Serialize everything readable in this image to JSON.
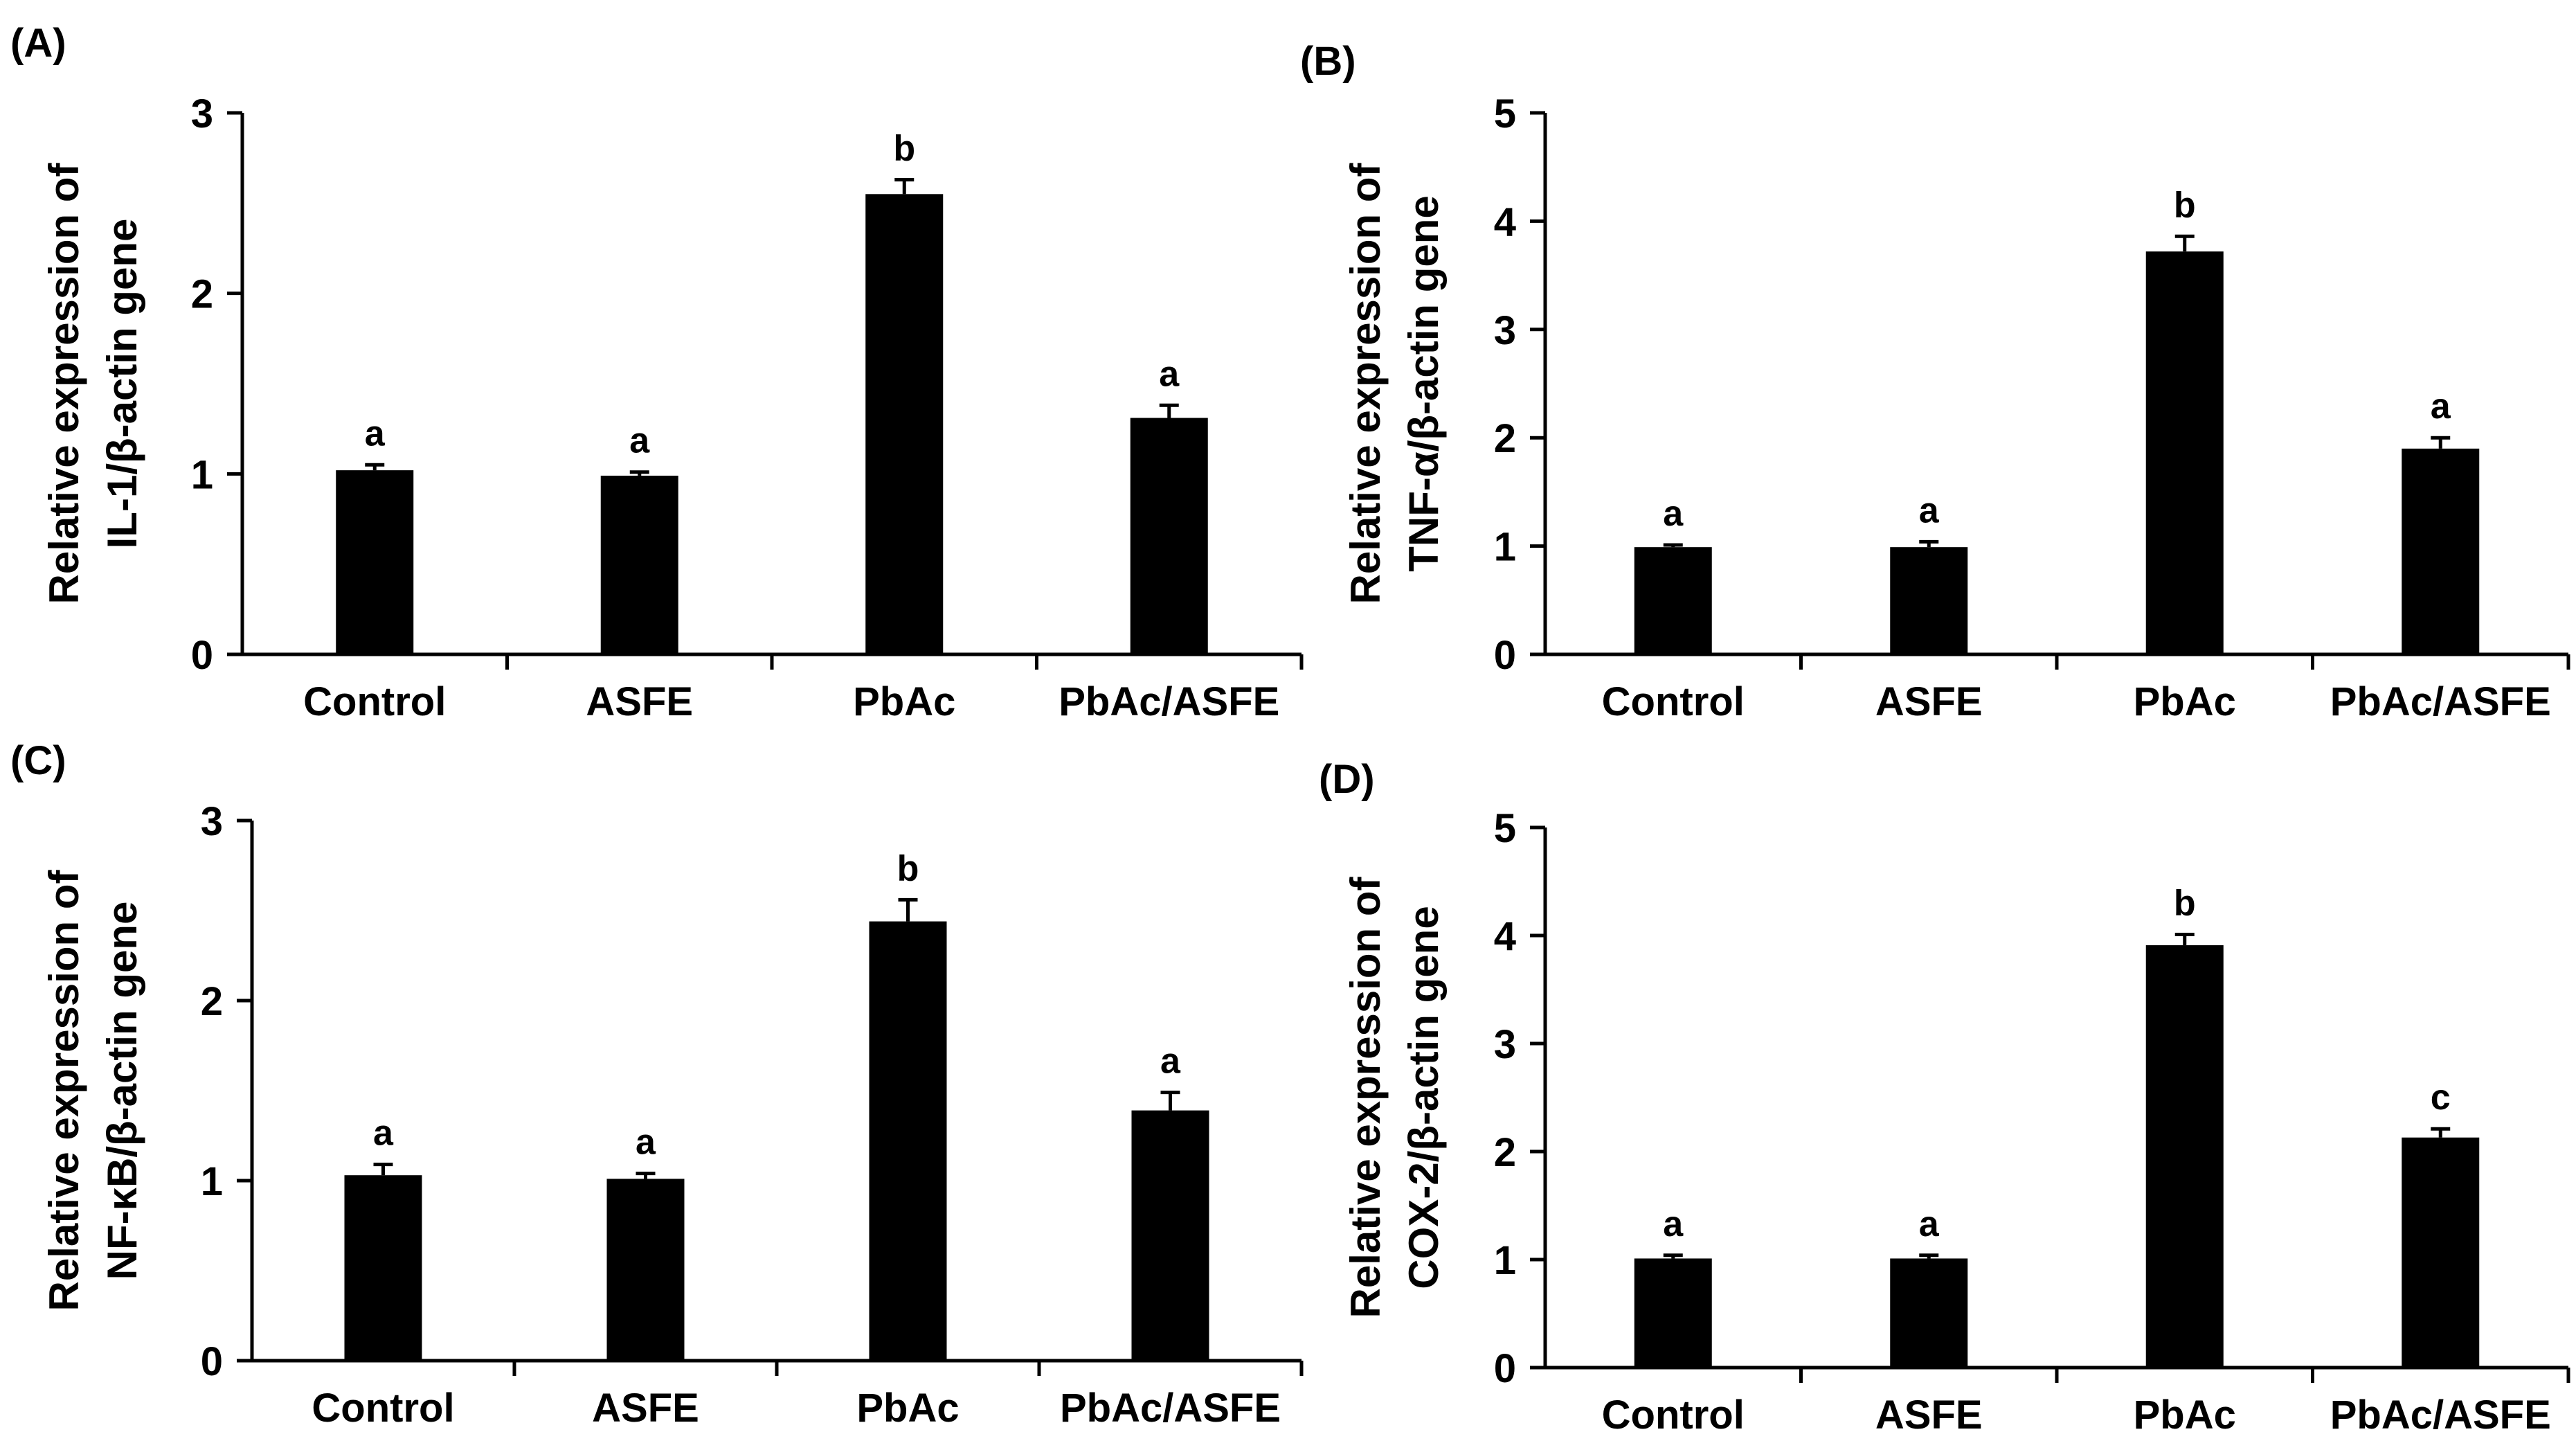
{
  "chart_data": [
    {
      "type": "bar",
      "panel_label": "(A)",
      "ylabel_line1": "Relative expression of",
      "ylabel_line2": "IL-1/β-actin gene",
      "categories": [
        "Control",
        "ASFE",
        "PbAc",
        "PbAc/ASFE"
      ],
      "values": [
        1.02,
        0.99,
        2.55,
        1.31
      ],
      "errors": [
        0.03,
        0.02,
        0.08,
        0.07
      ],
      "significance": [
        "a",
        "a",
        "b",
        "a"
      ],
      "ylim": [
        0,
        3
      ],
      "yticks": [
        "0",
        "1",
        "2",
        "3"
      ],
      "bar_color": "#000000"
    },
    {
      "type": "bar",
      "panel_label": "(B)",
      "ylabel_line1": "Relative expression of",
      "ylabel_line2": "TNF-α/β-actin gene",
      "categories": [
        "Control",
        "ASFE",
        "PbAc",
        "PbAc/ASFE"
      ],
      "values": [
        0.99,
        0.99,
        3.72,
        1.9
      ],
      "errors": [
        0.02,
        0.05,
        0.14,
        0.1
      ],
      "significance": [
        "a",
        "a",
        "b",
        "a"
      ],
      "ylim": [
        0,
        5
      ],
      "yticks": [
        "0",
        "1",
        "2",
        "3",
        "4",
        "5"
      ],
      "bar_color": "#000000"
    },
    {
      "type": "bar",
      "panel_label": "(C)",
      "ylabel_line1": "Relative expression of",
      "ylabel_line2": "NF-κB/β-actin gene",
      "categories": [
        "Control",
        "ASFE",
        "PbAc",
        "PbAc/ASFE"
      ],
      "values": [
        1.03,
        1.01,
        2.44,
        1.39
      ],
      "errors": [
        0.06,
        0.03,
        0.12,
        0.1
      ],
      "significance": [
        "a",
        "a",
        "b",
        "a"
      ],
      "ylim": [
        0,
        3
      ],
      "yticks": [
        "0",
        "1",
        "2",
        "3"
      ],
      "bar_color": "#000000"
    },
    {
      "type": "bar",
      "panel_label": "(D)",
      "ylabel_line1": "Relative expression of",
      "ylabel_line2": "COX-2/β-actin gene",
      "categories": [
        "Control",
        "ASFE",
        "PbAc",
        "PbAc/ASFE"
      ],
      "values": [
        1.01,
        1.01,
        3.91,
        2.13
      ],
      "errors": [
        0.03,
        0.03,
        0.1,
        0.08
      ],
      "significance": [
        "a",
        "a",
        "b",
        "c"
      ],
      "ylim": [
        0,
        5
      ],
      "yticks": [
        "0",
        "1",
        "2",
        "3",
        "4",
        "5"
      ],
      "bar_color": "#000000"
    }
  ]
}
